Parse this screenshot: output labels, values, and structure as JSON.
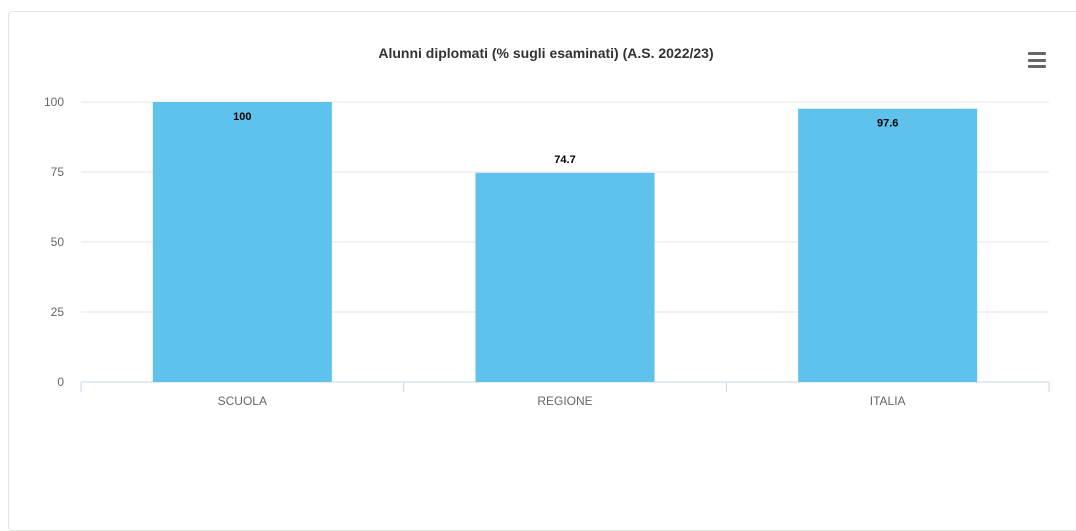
{
  "menu": {
    "icon": "hamburger-menu-icon"
  },
  "colors": {
    "bar": "#5ec2ec",
    "grid": "#e6e6e6",
    "axis": "#ccd6eb"
  },
  "chart_data": {
    "type": "bar",
    "title": "Alunni diplomati (% sugli esaminati) (A.S. 2022/23)",
    "xlabel": "",
    "ylabel": "",
    "categories": [
      "SCUOLA",
      "REGIONE",
      "ITALIA"
    ],
    "values": [
      100,
      74.7,
      97.6
    ],
    "data_labels": [
      "100",
      "74.7",
      "97.6"
    ],
    "ylim": [
      0,
      100
    ],
    "yticks": [
      0,
      25,
      50,
      75,
      100
    ],
    "grid": true,
    "legend": "none"
  }
}
